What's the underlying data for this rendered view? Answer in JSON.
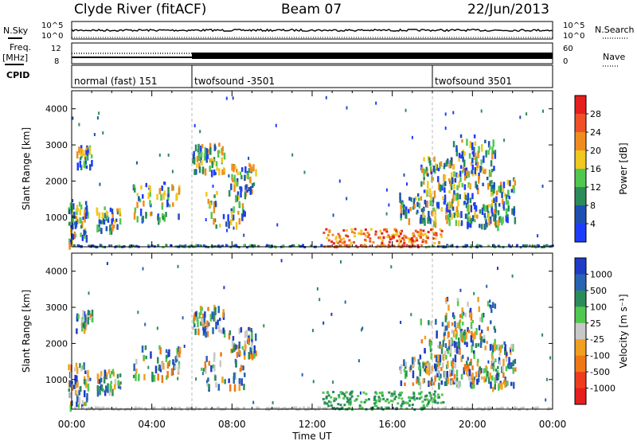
{
  "header": {
    "station": "Clyde River (fitACF)",
    "beam": "Beam 07",
    "date": "22/Jun/2013"
  },
  "side_labels": {
    "nsky": "N.Sky",
    "freq": "Freq.",
    "freq_unit": "[MHz]",
    "cpid": "CPID",
    "nsearch": "N.Search",
    "nave": "Nave"
  },
  "scale_labels": {
    "noise_top": "10^5",
    "noise_bottom": "10^0",
    "freq_top": "12",
    "freq_bottom": "8",
    "nave_top": "60",
    "nave_bottom": "0"
  },
  "cpid_segments": [
    {
      "label": "normal (fast) 151",
      "start_h": 0
    },
    {
      "label": "twofsound -3501",
      "start_h": 6
    },
    {
      "label": "twofsound 3501",
      "start_h": 18
    }
  ],
  "chart_data": [
    {
      "type": "heatmap",
      "name": "power",
      "ylabel": "Slant Range [km]",
      "colorbar_label": "Power [dB]",
      "colorbar_ticks": [
        "4",
        "8",
        "12",
        "16",
        "20",
        "24",
        "28"
      ],
      "colorbar_colors": [
        "#1e3cff",
        "#1e50b4",
        "#2a8c5a",
        "#50c850",
        "#f0c81e",
        "#f08c1e",
        "#f05028",
        "#e61e1e"
      ],
      "ylim": [
        180,
        4500
      ],
      "yticks": [
        "1000",
        "2000",
        "3000",
        "4000"
      ],
      "xlim": [
        "00:00",
        "24:00"
      ]
    },
    {
      "type": "heatmap",
      "name": "velocity",
      "ylabel": "Slant Range [km]",
      "colorbar_label": "Velocity [m s⁻¹]",
      "colorbar_ticks": [
        "1000",
        "500",
        "100",
        "25",
        "-25",
        "-100",
        "-500",
        "-1000"
      ],
      "colorbar_colors": [
        "#1e3cc8",
        "#2864b4",
        "#2a8c5a",
        "#50c850",
        "#c8c8c8",
        "#f0a01e",
        "#f07814",
        "#f03c1e",
        "#e61e1e"
      ],
      "ylim": [
        180,
        4500
      ],
      "yticks": [
        "1000",
        "2000",
        "3000",
        "4000"
      ],
      "xlim": [
        "00:00",
        "24:00"
      ]
    }
  ],
  "xaxis": {
    "ticks": [
      "00:00",
      "04:00",
      "08:00",
      "12:00",
      "16:00",
      "20:00",
      "00:00"
    ],
    "label": "Time UT"
  }
}
